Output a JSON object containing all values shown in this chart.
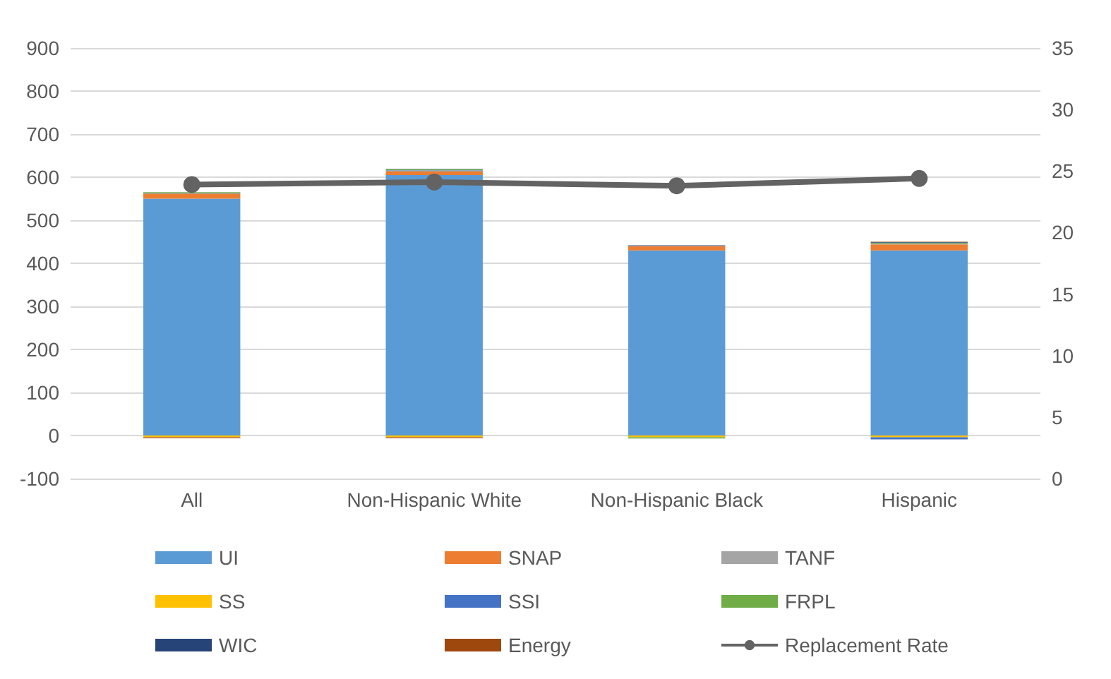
{
  "chart_data": {
    "type": "bar",
    "stacked": true,
    "categories": [
      "All",
      "Non-Hispanic White",
      "Non-Hispanic Black",
      "Hispanic"
    ],
    "series": [
      {
        "name": "UI",
        "color": "#5b9bd5",
        "values": [
          550,
          605,
          430,
          430
        ]
      },
      {
        "name": "SNAP",
        "color": "#ed7d31",
        "values": [
          12,
          8,
          10,
          14
        ]
      },
      {
        "name": "TANF",
        "color": "#a5a5a5",
        "values": [
          null,
          2,
          null,
          2
        ]
      },
      {
        "name": "SS",
        "color": "#ffc000",
        "values": [
          -4,
          -4,
          -4,
          -4
        ]
      },
      {
        "name": "SSI",
        "color": "#4472c4",
        "values": [
          1,
          1,
          1,
          -5
        ]
      },
      {
        "name": "FRPL",
        "color": "#70ad47",
        "values": [
          2,
          2,
          -3,
          2
        ]
      },
      {
        "name": "WIC",
        "color": "#264478",
        "values": [
          null,
          1,
          1,
          1
        ]
      },
      {
        "name": "Energy",
        "color": "#9e480e",
        "values": [
          -2,
          -2,
          null,
          1
        ]
      },
      {
        "name": "Replacement Rate",
        "type": "line",
        "axis": "y2",
        "color": "#636363",
        "marker": "circle",
        "values": [
          23.9,
          24.1,
          23.8,
          24.4
        ]
      }
    ],
    "ylim": [
      -100,
      900
    ],
    "yticks": [
      -100,
      0,
      100,
      200,
      300,
      400,
      500,
      600,
      700,
      800,
      900
    ],
    "y2lim": [
      0,
      35
    ],
    "y2ticks": [
      0,
      5,
      10,
      15,
      20,
      25,
      30,
      35
    ],
    "grid": "y",
    "legend": "bottom"
  }
}
